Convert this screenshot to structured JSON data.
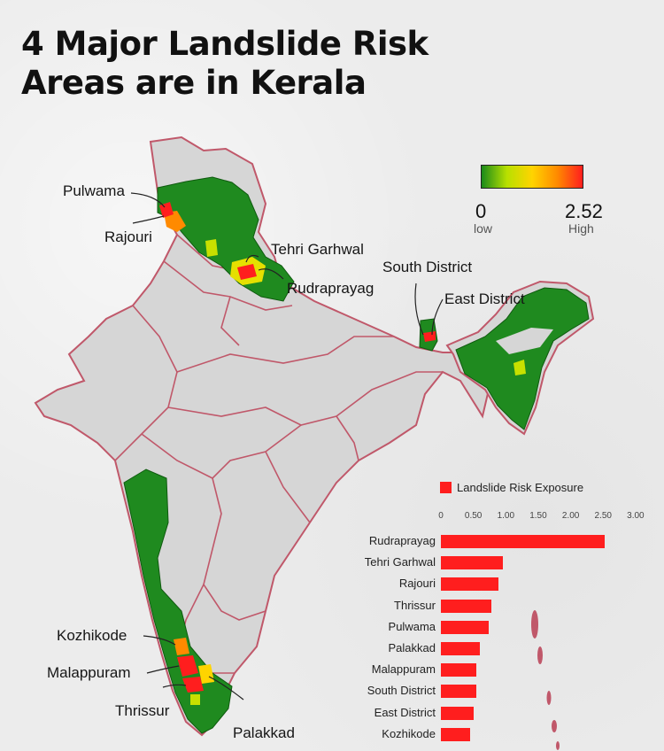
{
  "title": {
    "line1": "4 Major Landslide Risk",
    "line2": "Areas are in Kerala"
  },
  "scale_legend": {
    "min": "0",
    "max": "2.52",
    "min_word": "low",
    "max_word": "High",
    "gradient": [
      "#1a8a1a",
      "#b8e000",
      "#ffd400",
      "#ff8a00",
      "#ff1e1e"
    ]
  },
  "map_labels": {
    "pulwama": "Pulwama",
    "rajouri": "Rajouri",
    "tehri": "Tehri Garhwal",
    "rudraprayag": "Rudraprayag",
    "south_district": "South District",
    "east_district": "East District",
    "kozhikode": "Kozhikode",
    "malappuram": "Malappuram",
    "thrissur": "Thrissur",
    "palakkad": "Palakkad"
  },
  "colors": {
    "land": "#d6d6d6",
    "border": "#c0586a",
    "high_risk": "#1f8a1f",
    "bar": "#ff1e1e"
  },
  "chart_data": {
    "type": "bar",
    "orientation": "horizontal",
    "legend": "Landslide Risk Exposure",
    "xlim": [
      0,
      3.0
    ],
    "xticks": [
      "0",
      "0.50",
      "1.00",
      "1.50",
      "2.00",
      "2.50",
      "3.00"
    ],
    "categories": [
      "Rudraprayag",
      "Tehri Garhwal",
      "Rajouri",
      "Thrissur",
      "Pulwama",
      "Palakkad",
      "Malappuram",
      "South District",
      "East District",
      "Kozhikode"
    ],
    "values": [
      2.52,
      0.95,
      0.88,
      0.78,
      0.74,
      0.6,
      0.55,
      0.55,
      0.5,
      0.45
    ]
  }
}
